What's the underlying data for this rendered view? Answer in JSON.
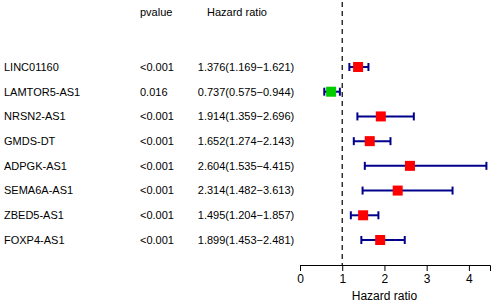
{
  "chart_data": {
    "type": "forest",
    "categories": [
      "LINC01160",
      "LAMTOR5-AS1",
      "NRSN2-AS1",
      "GMDS-DT",
      "ADPGK-AS1",
      "SEMA6A-AS1",
      "ZBED5-AS1",
      "FOXP4-AS1"
    ],
    "values": [
      1.376,
      0.737,
      1.914,
      1.652,
      2.604,
      2.314,
      1.495,
      1.899
    ],
    "ci_lower": [
      1.169,
      0.575,
      1.359,
      1.274,
      1.535,
      1.482,
      1.204,
      1.453
    ],
    "ci_upper": [
      1.621,
      0.944,
      2.696,
      2.143,
      4.415,
      3.613,
      1.857,
      2.481
    ],
    "pvalue_labels": [
      "<0.001",
      "0.016",
      "<0.001",
      "<0.001",
      "<0.001",
      "<0.001",
      "<0.001",
      "<0.001"
    ],
    "value_labels": [
      "1.376(1.169−1.621)",
      "0.737(0.575−0.944)",
      "1.914(1.359−2.696)",
      "1.652(1.274−2.143)",
      "2.604(1.535−4.415)",
      "2.314(1.482−3.613)",
      "1.495(1.204−1.857)",
      "1.899(1.453−2.481)"
    ],
    "column_headers": [
      "pvalue",
      "Hazard ratio"
    ],
    "x_label": "Hazard ratio",
    "reference_line": 1,
    "xlim": [
      0,
      4.5
    ],
    "xticks": [
      0,
      1,
      2,
      3,
      4
    ],
    "colors": [
      "#ff0000",
      "#00cc00",
      "#ff0000",
      "#ff0000",
      "#ff0000",
      "#ff0000",
      "#ff0000",
      "#ff0000"
    ]
  }
}
